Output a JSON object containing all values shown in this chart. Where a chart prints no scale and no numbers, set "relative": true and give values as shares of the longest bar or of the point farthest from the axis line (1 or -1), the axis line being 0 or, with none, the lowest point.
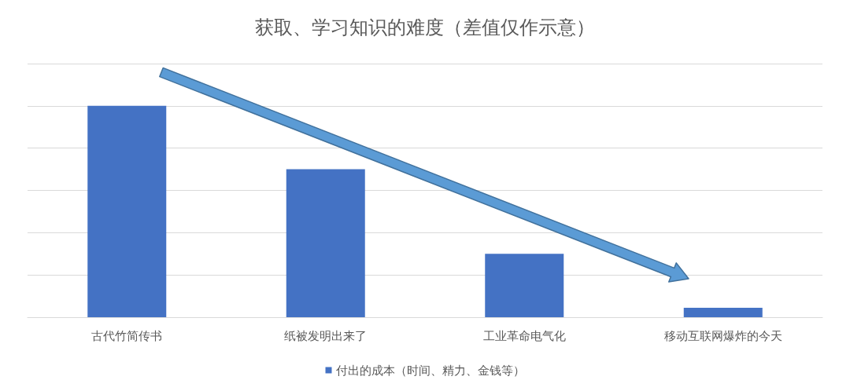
{
  "chart_data": {
    "type": "bar",
    "title": "获取、学习知识的难度（差值仅作示意）",
    "categories": [
      "古代竹简传书",
      "纸被发明出来了",
      "工业革命电气化",
      "移动互联网爆炸的今天"
    ],
    "series": [
      {
        "name": "付出的成本（时间、精力、金钱等）",
        "color": "#4472c4",
        "values": [
          1,
          0.7,
          0.3,
          0.045
        ]
      }
    ],
    "relative": true,
    "grid": "y",
    "legend": "bottom"
  }
}
